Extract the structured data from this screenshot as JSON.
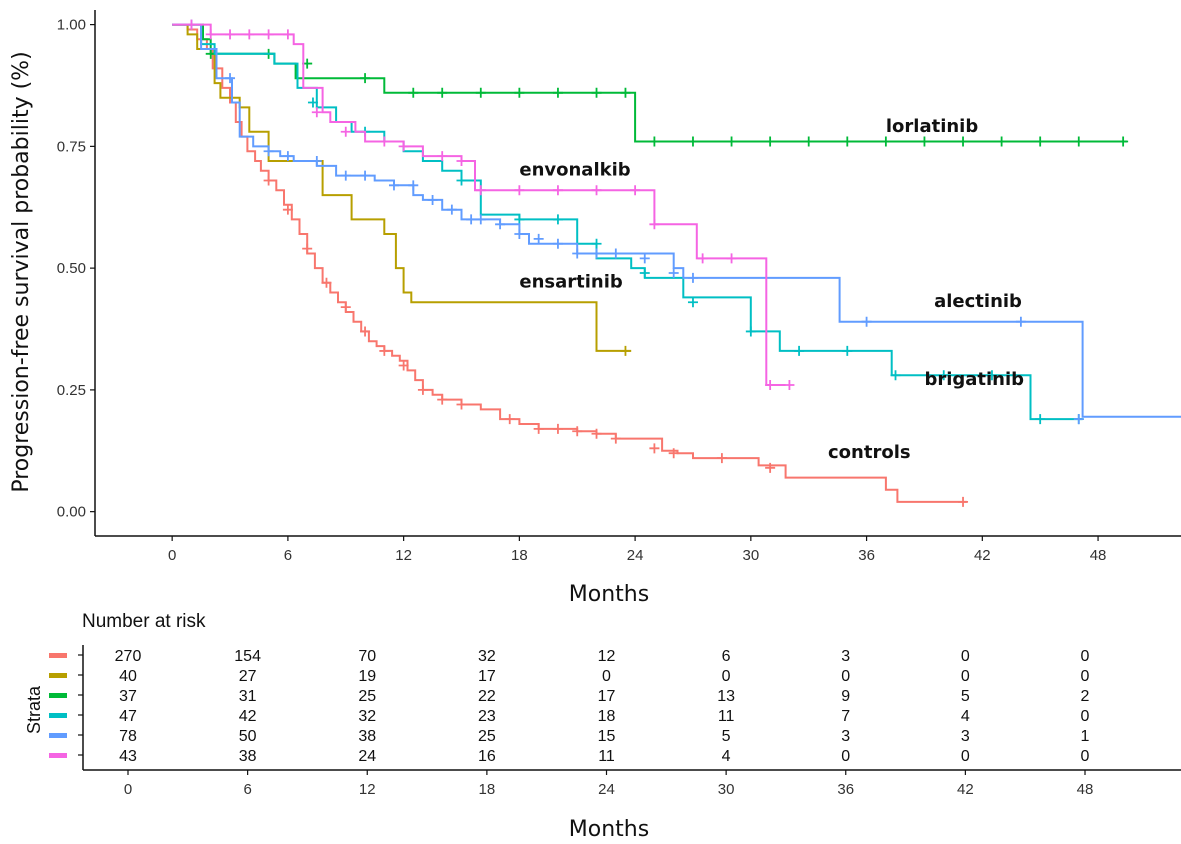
{
  "chart_data": {
    "type": "line",
    "subtype": "kaplan-meier",
    "xlabel": "Months",
    "ylabel": "Progression-free survival probability (%)",
    "xlim": [
      -4,
      52.3
    ],
    "ylim": [
      -0.05,
      1.03
    ],
    "x_ticks": [
      "0",
      "6",
      "12",
      "18",
      "24",
      "30",
      "36",
      "42",
      "48"
    ],
    "y_ticks": [
      "0.00",
      "0.25",
      "0.50",
      "0.75",
      "1.00"
    ],
    "series": [
      {
        "name": "controls",
        "color": "#F8766D",
        "label": "controls",
        "label_at": [
          34,
          0.11
        ],
        "steps": [
          [
            0,
            1
          ],
          [
            0.8,
            0.99
          ],
          [
            1.3,
            0.97
          ],
          [
            1.8,
            0.95
          ],
          [
            2.1,
            0.91
          ],
          [
            2.6,
            0.87
          ],
          [
            3,
            0.84
          ],
          [
            3.3,
            0.8
          ],
          [
            3.6,
            0.77
          ],
          [
            3.9,
            0.74
          ],
          [
            4.3,
            0.72
          ],
          [
            4.6,
            0.7
          ],
          [
            5,
            0.68
          ],
          [
            5.4,
            0.66
          ],
          [
            5.8,
            0.63
          ],
          [
            6.2,
            0.6
          ],
          [
            6.6,
            0.57
          ],
          [
            7,
            0.53
          ],
          [
            7.4,
            0.5
          ],
          [
            7.8,
            0.47
          ],
          [
            8.2,
            0.45
          ],
          [
            8.6,
            0.43
          ],
          [
            9,
            0.41
          ],
          [
            9.4,
            0.39
          ],
          [
            9.8,
            0.37
          ],
          [
            10.2,
            0.35
          ],
          [
            10.6,
            0.34
          ],
          [
            11,
            0.33
          ],
          [
            11.4,
            0.32
          ],
          [
            11.8,
            0.31
          ],
          [
            12.2,
            0.29
          ],
          [
            12.6,
            0.27
          ],
          [
            13,
            0.25
          ],
          [
            13.5,
            0.24
          ],
          [
            14,
            0.23
          ],
          [
            15,
            0.22
          ],
          [
            16,
            0.21
          ],
          [
            17,
            0.19
          ],
          [
            18,
            0.18
          ],
          [
            19,
            0.17
          ],
          [
            21,
            0.165
          ],
          [
            22,
            0.16
          ],
          [
            23,
            0.15
          ],
          [
            25.4,
            0.125
          ],
          [
            26.2,
            0.12
          ],
          [
            27,
            0.11
          ],
          [
            30.4,
            0.095
          ],
          [
            31.8,
            0.07
          ],
          [
            37,
            0.045
          ],
          [
            37.6,
            0.02
          ],
          [
            41.2,
            0.02
          ]
        ],
        "censors": [
          [
            5,
            0.68
          ],
          [
            6,
            0.62
          ],
          [
            7,
            0.54
          ],
          [
            8,
            0.47
          ],
          [
            9,
            0.42
          ],
          [
            10,
            0.37
          ],
          [
            11,
            0.33
          ],
          [
            12,
            0.3
          ],
          [
            13,
            0.25
          ],
          [
            14,
            0.23
          ],
          [
            15,
            0.22
          ],
          [
            17.5,
            0.19
          ],
          [
            19,
            0.17
          ],
          [
            20,
            0.17
          ],
          [
            21,
            0.165
          ],
          [
            22,
            0.16
          ],
          [
            23,
            0.15
          ],
          [
            25,
            0.13
          ],
          [
            26,
            0.12
          ],
          [
            28.5,
            0.11
          ],
          [
            31,
            0.09
          ],
          [
            41,
            0.02
          ]
        ]
      },
      {
        "name": "ensartinib",
        "color": "#B79F00",
        "label": "ensartinib",
        "label_at": [
          18,
          0.46
        ],
        "steps": [
          [
            0,
            1
          ],
          [
            0.8,
            0.98
          ],
          [
            1.3,
            0.95
          ],
          [
            2.2,
            0.88
          ],
          [
            2.5,
            0.85
          ],
          [
            3.5,
            0.83
          ],
          [
            4,
            0.78
          ],
          [
            5,
            0.72
          ],
          [
            7.8,
            0.65
          ],
          [
            9.3,
            0.6
          ],
          [
            11,
            0.57
          ],
          [
            11.6,
            0.5
          ],
          [
            12,
            0.45
          ],
          [
            12.4,
            0.43
          ],
          [
            15,
            0.43
          ],
          [
            22,
            0.43
          ],
          [
            22,
            0.33
          ],
          [
            23.8,
            0.33
          ]
        ],
        "censors": [
          [
            23.5,
            0.33
          ]
        ]
      },
      {
        "name": "lorlatinib",
        "color": "#00BA38",
        "label": "lorlatinib",
        "label_at": [
          37,
          0.78
        ],
        "steps": [
          [
            0,
            1
          ],
          [
            1.6,
            0.97
          ],
          [
            2,
            0.94
          ],
          [
            3.5,
            0.94
          ],
          [
            5.3,
            0.92
          ],
          [
            6.4,
            0.89
          ],
          [
            8,
            0.89
          ],
          [
            11,
            0.86
          ],
          [
            15,
            0.86
          ],
          [
            23.5,
            0.86
          ],
          [
            24,
            0.76
          ],
          [
            49.5,
            0.76
          ]
        ],
        "censors": [
          [
            2,
            0.94
          ],
          [
            5,
            0.94
          ],
          [
            7,
            0.92
          ],
          [
            10,
            0.89
          ],
          [
            12.5,
            0.86
          ],
          [
            14,
            0.86
          ],
          [
            16,
            0.86
          ],
          [
            18,
            0.86
          ],
          [
            20,
            0.86
          ],
          [
            22,
            0.86
          ],
          [
            23.5,
            0.86
          ],
          [
            25,
            0.76
          ],
          [
            27,
            0.76
          ],
          [
            29,
            0.76
          ],
          [
            31,
            0.76
          ],
          [
            33,
            0.76
          ],
          [
            35,
            0.76
          ],
          [
            37,
            0.76
          ],
          [
            39,
            0.76
          ],
          [
            41,
            0.76
          ],
          [
            43,
            0.76
          ],
          [
            45,
            0.76
          ],
          [
            47,
            0.76
          ],
          [
            49.3,
            0.76
          ]
        ]
      },
      {
        "name": "brigatinib",
        "color": "#00BFC4",
        "label": "brigatinib",
        "label_at": [
          39,
          0.26
        ],
        "steps": [
          [
            0,
            1
          ],
          [
            1.5,
            0.96
          ],
          [
            2.2,
            0.94
          ],
          [
            5.3,
            0.92
          ],
          [
            6.5,
            0.87
          ],
          [
            7.5,
            0.83
          ],
          [
            8.5,
            0.8
          ],
          [
            9.3,
            0.78
          ],
          [
            11,
            0.76
          ],
          [
            12,
            0.74
          ],
          [
            13,
            0.72
          ],
          [
            14,
            0.7
          ],
          [
            15,
            0.68
          ],
          [
            16,
            0.61
          ],
          [
            18,
            0.6
          ],
          [
            21,
            0.55
          ],
          [
            22,
            0.52
          ],
          [
            23.8,
            0.5
          ],
          [
            24.5,
            0.48
          ],
          [
            26.5,
            0.44
          ],
          [
            30,
            0.37
          ],
          [
            31.5,
            0.33
          ],
          [
            37.3,
            0.28
          ],
          [
            44.5,
            0.19
          ],
          [
            47.2,
            0.19
          ]
        ],
        "censors": [
          [
            7.3,
            0.84
          ],
          [
            10,
            0.78
          ],
          [
            15,
            0.68
          ],
          [
            18,
            0.6
          ],
          [
            20,
            0.6
          ],
          [
            22,
            0.55
          ],
          [
            24.5,
            0.49
          ],
          [
            27,
            0.43
          ],
          [
            30,
            0.37
          ],
          [
            32.5,
            0.33
          ],
          [
            35,
            0.33
          ],
          [
            37.5,
            0.28
          ],
          [
            40,
            0.28
          ],
          [
            42.5,
            0.28
          ],
          [
            45,
            0.19
          ],
          [
            47,
            0.19
          ]
        ]
      },
      {
        "name": "alectinib",
        "color": "#619CFF",
        "label": "alectinib",
        "label_at": [
          39.5,
          0.42
        ],
        "steps": [
          [
            0,
            1
          ],
          [
            1.5,
            0.95
          ],
          [
            2.3,
            0.89
          ],
          [
            3.1,
            0.84
          ],
          [
            3.5,
            0.77
          ],
          [
            4.2,
            0.75
          ],
          [
            5,
            0.74
          ],
          [
            5.6,
            0.73
          ],
          [
            6.3,
            0.72
          ],
          [
            7.5,
            0.71
          ],
          [
            8.5,
            0.69
          ],
          [
            10.5,
            0.68
          ],
          [
            11.5,
            0.67
          ],
          [
            12.5,
            0.65
          ],
          [
            13,
            0.64
          ],
          [
            14,
            0.62
          ],
          [
            15,
            0.6
          ],
          [
            17,
            0.59
          ],
          [
            18,
            0.57
          ],
          [
            18.5,
            0.55
          ],
          [
            21,
            0.53
          ],
          [
            26,
            0.5
          ],
          [
            26.5,
            0.48
          ],
          [
            34.6,
            0.48
          ],
          [
            34.6,
            0.39
          ],
          [
            47.2,
            0.39
          ],
          [
            47.2,
            0.195
          ],
          [
            52.3,
            0.195
          ]
        ],
        "censors": [
          [
            1,
            1
          ],
          [
            3,
            0.89
          ],
          [
            5,
            0.74
          ],
          [
            6,
            0.73
          ],
          [
            7.5,
            0.72
          ],
          [
            9,
            0.69
          ],
          [
            10,
            0.69
          ],
          [
            11.5,
            0.67
          ],
          [
            12.5,
            0.67
          ],
          [
            13.5,
            0.64
          ],
          [
            14.5,
            0.62
          ],
          [
            15.5,
            0.6
          ],
          [
            16,
            0.6
          ],
          [
            17,
            0.59
          ],
          [
            18,
            0.57
          ],
          [
            19,
            0.56
          ],
          [
            20,
            0.55
          ],
          [
            21,
            0.53
          ],
          [
            22,
            0.53
          ],
          [
            23,
            0.53
          ],
          [
            24.5,
            0.52
          ],
          [
            26,
            0.49
          ],
          [
            27,
            0.48
          ],
          [
            36,
            0.39
          ],
          [
            44,
            0.39
          ],
          [
            47,
            0.19
          ]
        ]
      },
      {
        "name": "envonalkib",
        "color": "#F564E3",
        "label": "envonalkib",
        "label_at": [
          18,
          0.69
        ],
        "steps": [
          [
            0,
            1
          ],
          [
            2,
            0.98
          ],
          [
            6.3,
            0.96
          ],
          [
            6.8,
            0.87
          ],
          [
            7.8,
            0.82
          ],
          [
            8.2,
            0.8
          ],
          [
            9.5,
            0.78
          ],
          [
            10,
            0.76
          ],
          [
            12,
            0.75
          ],
          [
            13,
            0.73
          ],
          [
            15,
            0.72
          ],
          [
            15.7,
            0.66
          ],
          [
            20,
            0.66
          ],
          [
            24.6,
            0.66
          ],
          [
            25,
            0.59
          ],
          [
            27.2,
            0.52
          ],
          [
            30.5,
            0.52
          ],
          [
            30.8,
            0.26
          ],
          [
            31.8,
            0.26
          ]
        ],
        "censors": [
          [
            1,
            1
          ],
          [
            2,
            0.98
          ],
          [
            3,
            0.98
          ],
          [
            4,
            0.98
          ],
          [
            5,
            0.98
          ],
          [
            6,
            0.98
          ],
          [
            7.5,
            0.82
          ],
          [
            9,
            0.78
          ],
          [
            11,
            0.76
          ],
          [
            12,
            0.75
          ],
          [
            14,
            0.73
          ],
          [
            15,
            0.72
          ],
          [
            16,
            0.66
          ],
          [
            18,
            0.66
          ],
          [
            20,
            0.66
          ],
          [
            22,
            0.66
          ],
          [
            24,
            0.66
          ],
          [
            25,
            0.59
          ],
          [
            27.5,
            0.52
          ],
          [
            29,
            0.52
          ],
          [
            31,
            0.26
          ],
          [
            32,
            0.26
          ]
        ]
      }
    ]
  },
  "risk_table": {
    "title": "Number at risk",
    "strata_label": "Strata",
    "xlabel": "Months",
    "x_ticks": [
      "0",
      "6",
      "12",
      "18",
      "24",
      "30",
      "36",
      "42",
      "48"
    ],
    "rows": [
      {
        "color": "#F8766D",
        "values": [
          "270",
          "154",
          "70",
          "32",
          "12",
          "6",
          "3",
          "0",
          "0"
        ]
      },
      {
        "color": "#B79F00",
        "values": [
          "40",
          "27",
          "19",
          "17",
          "0",
          "0",
          "0",
          "0",
          "0"
        ]
      },
      {
        "color": "#00BA38",
        "values": [
          "37",
          "31",
          "25",
          "22",
          "17",
          "13",
          "9",
          "5",
          "2"
        ]
      },
      {
        "color": "#00BFC4",
        "values": [
          "47",
          "42",
          "32",
          "23",
          "18",
          "11",
          "7",
          "4",
          "0"
        ]
      },
      {
        "color": "#619CFF",
        "values": [
          "78",
          "50",
          "38",
          "25",
          "15",
          "5",
          "3",
          "3",
          "1"
        ]
      },
      {
        "color": "#F564E3",
        "values": [
          "43",
          "38",
          "24",
          "16",
          "11",
          "4",
          "0",
          "0",
          "0"
        ]
      }
    ]
  }
}
